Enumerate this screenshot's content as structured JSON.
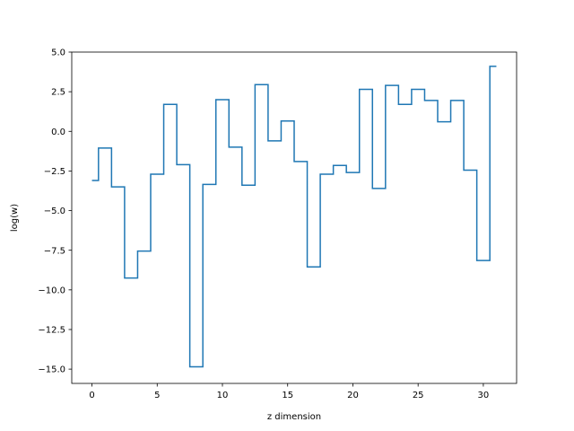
{
  "chart_data": {
    "type": "line",
    "drawstyle": "steps-mid",
    "title": "",
    "xlabel": "z dimension",
    "ylabel": "log(w)",
    "xlim": [
      -1.55,
      32.55
    ],
    "ylim": [
      -15.9,
      5.0
    ],
    "xticks": [
      0,
      5,
      10,
      15,
      20,
      25,
      30
    ],
    "xtick_labels": [
      "0",
      "5",
      "10",
      "15",
      "20",
      "25",
      "30"
    ],
    "yticks": [
      5.0,
      2.5,
      0.0,
      -2.5,
      -5.0,
      -7.5,
      -10.0,
      -12.5,
      -15.0
    ],
    "ytick_labels": [
      "5.0",
      "2.5",
      "0.0",
      "−2.5",
      "−5.0",
      "−7.5",
      "−10.0",
      "−12.5",
      "−15.0"
    ],
    "grid": false,
    "legend": "none",
    "series": [
      {
        "color": "#1f77b4",
        "x": [
          0,
          1,
          2,
          3,
          4,
          5,
          6,
          7,
          8,
          9,
          10,
          11,
          12,
          13,
          14,
          15,
          16,
          17,
          18,
          19,
          20,
          21,
          22,
          23,
          24,
          25,
          26,
          27,
          28,
          29,
          30,
          31
        ],
        "values": [
          -3.1,
          -1.05,
          -3.5,
          -9.25,
          -7.55,
          -2.7,
          1.7,
          -2.1,
          -14.85,
          -3.35,
          2.0,
          -1.0,
          -3.4,
          2.95,
          -0.6,
          0.65,
          -1.9,
          -8.55,
          -2.7,
          -2.15,
          -2.6,
          2.65,
          -3.6,
          2.9,
          1.7,
          2.65,
          1.95,
          0.6,
          1.95,
          -2.45,
          -8.15,
          4.1
        ]
      }
    ]
  }
}
